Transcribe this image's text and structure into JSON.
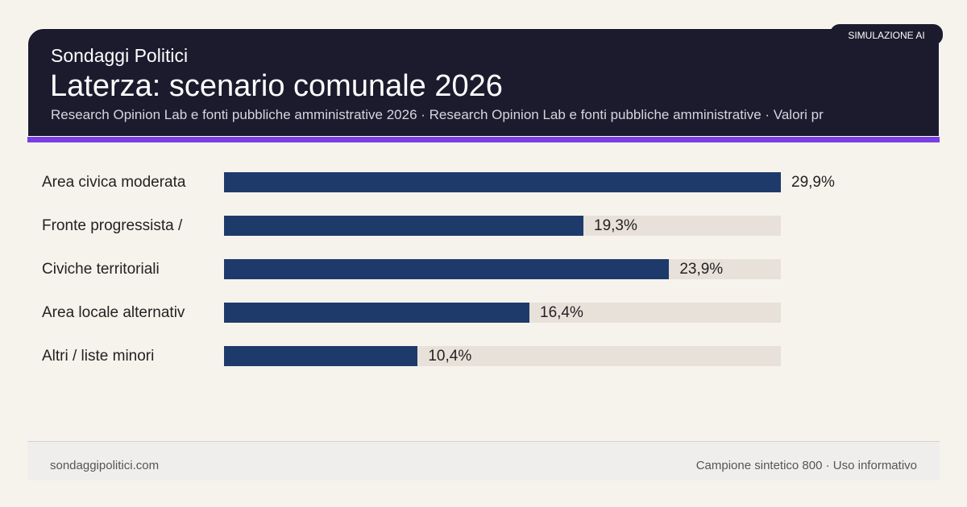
{
  "header": {
    "kicker": "Sondaggi Politici",
    "title": "Laterza: scenario comunale 2026",
    "subtitle": "Research Opinion Lab e fonti pubbliche amministrative 2026 · Research Opinion Lab e fonti pubbliche amministrative · Valori pr",
    "badge": "SIMULAZIONE AI"
  },
  "colors": {
    "bar": "#1e3a6b",
    "track": "#e8e1da",
    "accent": "#7a3ee3",
    "header_bg": "#1c1b2e"
  },
  "chart_data": {
    "type": "bar",
    "orientation": "horizontal",
    "categories": [
      "Area civica moderata",
      "Fronte progressista /",
      "Civiche territoriali",
      "Area locale alternativ",
      "Altri / liste minori"
    ],
    "values": [
      29.9,
      19.3,
      23.9,
      16.4,
      10.4
    ],
    "value_labels": [
      "29,9%",
      "19,3%",
      "23,9%",
      "16,4%",
      "10,4%"
    ],
    "xlim": [
      0,
      29.9
    ],
    "grid": false
  },
  "footer": {
    "site": "sondaggipolitici.com",
    "note": "Campione sintetico 800 · Uso informativo"
  }
}
